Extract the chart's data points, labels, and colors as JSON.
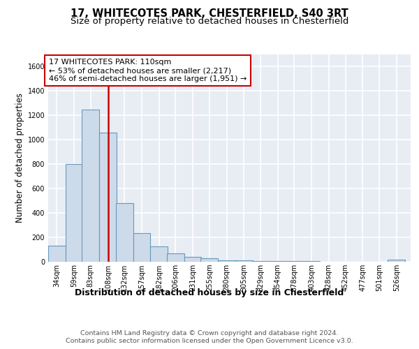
{
  "title_line1": "17, WHITECOTES PARK, CHESTERFIELD, S40 3RT",
  "title_line2": "Size of property relative to detached houses in Chesterfield",
  "xlabel": "Distribution of detached houses by size in Chesterfield",
  "ylabel": "Number of detached properties",
  "footer_line1": "Contains HM Land Registry data © Crown copyright and database right 2024.",
  "footer_line2": "Contains public sector information licensed under the Open Government Licence v3.0.",
  "annotation_line1": "17 WHITECOTES PARK: 110sqm",
  "annotation_line2": "← 53% of detached houses are smaller (2,217)",
  "annotation_line3": "46% of semi-detached houses are larger (1,951) →",
  "bar_color": "#cddaea",
  "bar_edge_color": "#6699bb",
  "reference_line_color": "#cc0000",
  "reference_line_x": 108,
  "categories": [
    "34sqm",
    "59sqm",
    "83sqm",
    "108sqm",
    "132sqm",
    "157sqm",
    "182sqm",
    "206sqm",
    "231sqm",
    "255sqm",
    "280sqm",
    "305sqm",
    "329sqm",
    "354sqm",
    "378sqm",
    "403sqm",
    "428sqm",
    "452sqm",
    "477sqm",
    "501sqm",
    "526sqm"
  ],
  "bin_starts": [
    34,
    59,
    83,
    108,
    132,
    157,
    182,
    206,
    231,
    255,
    280,
    305,
    329,
    354,
    378,
    403,
    428,
    452,
    477,
    501,
    526
  ],
  "bin_width": 25,
  "values": [
    130,
    800,
    1245,
    1055,
    480,
    235,
    125,
    68,
    40,
    28,
    14,
    10,
    8,
    8,
    4,
    4,
    2,
    1,
    1,
    1,
    18
  ],
  "ylim": [
    0,
    1700
  ],
  "yticks": [
    0,
    200,
    400,
    600,
    800,
    1000,
    1200,
    1400,
    1600
  ],
  "plot_bg": "#e8edf4",
  "grid_color": "#ffffff",
  "title_fontsize": 10.5,
  "subtitle_fontsize": 9.5,
  "ylabel_fontsize": 8.5,
  "xlabel_fontsize": 9,
  "tick_fontsize": 7,
  "annotation_fontsize": 8,
  "footer_fontsize": 6.8
}
